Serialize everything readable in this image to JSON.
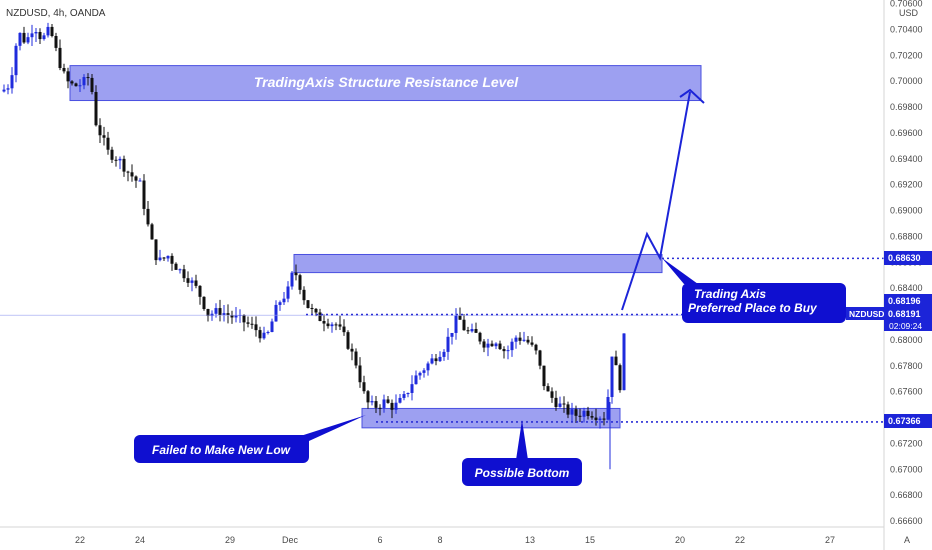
{
  "header": {
    "symbol_line": "NZDUSD, 4h, OANDA",
    "currency": "USD"
  },
  "footer": {
    "scale_mode": "A"
  },
  "chart_data": {
    "type": "candlestick",
    "symbol": "NZDUSD",
    "timeframe": "4h",
    "exchange": "OANDA",
    "ylim": [
      0.6655,
      0.706
    ],
    "y_ticks": [
      "0.70600",
      "0.70400",
      "0.70200",
      "0.70000",
      "0.69800",
      "0.69600",
      "0.69400",
      "0.69200",
      "0.69000",
      "0.68800",
      "0.68600",
      "0.68400",
      "0.68200",
      "0.68000",
      "0.67800",
      "0.67600",
      "0.67400",
      "0.67200",
      "0.67000",
      "0.66800",
      "0.66600"
    ],
    "x_ticks": [
      "22",
      "24",
      "29",
      "Dec",
      "6",
      "8",
      "13",
      "15",
      "20",
      "22",
      "27"
    ],
    "price_labels": [
      {
        "value": 0.6863,
        "text": "0.68630",
        "color": "#1c24d8"
      },
      {
        "value": 0.68196,
        "text": "0.68196",
        "color": "#1c24d8"
      },
      {
        "value": 0.68191,
        "text": "0.68191",
        "color": "#1c24d8"
      },
      {
        "value": 0.67366,
        "text": "0.67366",
        "color": "#1c24d8"
      }
    ],
    "current": {
      "symbol": "NZDUSD",
      "countdown": "02:09:24"
    },
    "zones": [
      {
        "name": "structure-resistance",
        "low": 0.6985,
        "high": 0.7012
      },
      {
        "name": "preferred-buy",
        "low": 0.6852,
        "high": 0.6866
      },
      {
        "name": "support-bottom",
        "low": 0.6732,
        "high": 0.6747
      }
    ],
    "annotations": {
      "resistance_label": "TradingAxis Structure Resistance Level",
      "buy_label_line1": "Trading Axis",
      "buy_label_line2": "Preferred Place to Buy",
      "low_label": "Failed to Make New Low",
      "bottom_label": "Possible Bottom"
    },
    "colors": {
      "up": "#1f2bdc",
      "down": "#111111",
      "zone_fill": "#8c8fee",
      "line": "#2b2fd6",
      "label_bg": "#0f0fd0"
    }
  }
}
